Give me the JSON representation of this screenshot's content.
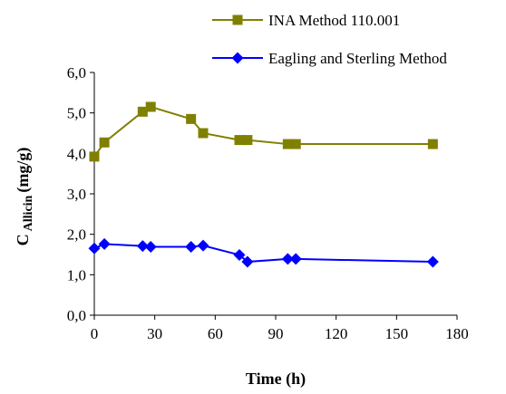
{
  "chart_data": {
    "type": "line",
    "xlabel": "Time (h)",
    "ylabel": {
      "main": "C",
      "sub": "Allicin",
      "unit": "(mg/g)"
    },
    "xlim": [
      0,
      180
    ],
    "ylim": [
      0,
      6
    ],
    "xticks": [
      0,
      30,
      60,
      90,
      120,
      150,
      180
    ],
    "xtick_labels": [
      "0",
      "30",
      "60",
      "90",
      "120",
      "150",
      "180"
    ],
    "yticks": [
      0,
      1,
      2,
      3,
      4,
      5,
      6
    ],
    "ytick_labels": [
      "0,0",
      "1,0",
      "2,0",
      "3,0",
      "4,0",
      "5,0",
      "6,0"
    ],
    "grid": false,
    "legend_position": "top-right",
    "series": [
      {
        "name": "INA Method 110.001",
        "color": "#808000",
        "marker": "square",
        "points": [
          [
            0,
            3.92
          ],
          [
            5,
            4.27
          ],
          [
            24,
            5.03
          ],
          [
            28,
            5.15
          ],
          [
            48,
            4.85
          ],
          [
            54,
            4.5
          ],
          [
            72,
            4.33
          ],
          [
            76,
            4.33
          ],
          [
            96,
            4.23
          ],
          [
            100,
            4.23
          ],
          [
            168,
            4.23
          ]
        ]
      },
      {
        "name": "Eagling and Sterling Method",
        "color": "#0000FF",
        "marker": "diamond",
        "points": [
          [
            0,
            1.65
          ],
          [
            5,
            1.76
          ],
          [
            24,
            1.71
          ],
          [
            28,
            1.69
          ],
          [
            48,
            1.69
          ],
          [
            54,
            1.72
          ],
          [
            72,
            1.49
          ],
          [
            76,
            1.32
          ],
          [
            96,
            1.39
          ],
          [
            100,
            1.39
          ],
          [
            168,
            1.32
          ]
        ]
      }
    ]
  }
}
